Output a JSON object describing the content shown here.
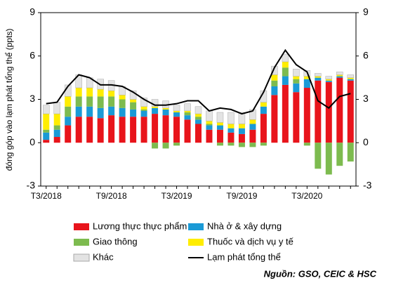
{
  "chart_data": {
    "type": "bar",
    "y_label": "đóng góp vào lạm phát tổng thể (ppts)",
    "source": "Nguồn: GSO, CEIC & HSC",
    "categories": [
      "T3/2018",
      null,
      null,
      null,
      null,
      null,
      "T9/2018",
      null,
      null,
      null,
      null,
      null,
      "T3/2019",
      null,
      null,
      null,
      null,
      null,
      "T9/2019",
      null,
      null,
      null,
      null,
      null,
      "T3/2020",
      null,
      null,
      null,
      null
    ],
    "ylim": [
      -3,
      9
    ],
    "yticks": [
      -3,
      0,
      3,
      6,
      9
    ],
    "y2lim": [
      -3,
      9
    ],
    "y2ticks": [
      -3,
      0,
      3,
      6,
      9
    ],
    "series": [
      {
        "name": "Lương thực thực phẩm",
        "color": "#e8141b",
        "values": [
          0.2,
          0.4,
          1.2,
          1.8,
          1.8,
          1.7,
          1.9,
          1.8,
          1.8,
          1.8,
          2.0,
          1.9,
          1.8,
          1.6,
          1.3,
          0.9,
          0.9,
          0.7,
          0.6,
          0.9,
          2.0,
          3.3,
          4.0,
          3.5,
          3.8,
          4.3,
          4.2,
          4.5,
          4.3
        ]
      },
      {
        "name": "Nhà ở & xây dựng",
        "color": "#1a9ad6",
        "values": [
          0.5,
          0.5,
          0.6,
          0.7,
          0.7,
          0.7,
          0.6,
          0.6,
          0.5,
          0.4,
          0.4,
          0.4,
          0.3,
          0.3,
          0.3,
          0.3,
          0.3,
          0.3,
          0.4,
          0.4,
          0.5,
          0.6,
          0.6,
          0.6,
          0.6,
          0.2,
          0.1,
          0.1,
          0.1
        ]
      },
      {
        "name": "Giao thông",
        "color": "#7dbb4f",
        "values": [
          0.2,
          0.3,
          0.7,
          0.7,
          0.7,
          0.8,
          0.7,
          0.6,
          0.5,
          0.1,
          -0.4,
          -0.4,
          -0.2,
          0.2,
          0.2,
          0.1,
          -0.2,
          -0.2,
          -0.3,
          -0.3,
          -0.2,
          0.4,
          0.6,
          0.3,
          -0.2,
          -1.8,
          -2.2,
          -1.6,
          -1.3
        ]
      },
      {
        "name": "Thuốc và dịch vụ y tế",
        "color": "#ffed00",
        "values": [
          1.1,
          0.8,
          0.7,
          0.6,
          0.6,
          0.5,
          0.4,
          0.3,
          0.2,
          0.2,
          0.1,
          0.1,
          0.1,
          0.1,
          0.2,
          0.2,
          0.2,
          0.3,
          0.3,
          0.3,
          0.3,
          0.4,
          0.4,
          0.2,
          0.2,
          0.1,
          0.1,
          0.1,
          0.1
        ]
      },
      {
        "name": "Khác",
        "color": "#e3e3e3",
        "values": [
          0.6,
          0.8,
          0.8,
          0.9,
          0.7,
          0.7,
          0.7,
          0.6,
          0.6,
          0.6,
          0.5,
          0.5,
          0.4,
          0.5,
          0.5,
          0.7,
          0.7,
          0.8,
          0.8,
          0.7,
          0.8,
          0.6,
          0.5,
          0.5,
          0.4,
          0.2,
          0.2,
          0.2,
          0.2
        ]
      },
      {
        "name": "Lạm phát tổng thể",
        "color": "#000000",
        "type": "line",
        "axis": "y2",
        "values": [
          2.7,
          2.8,
          3.9,
          4.7,
          4.5,
          4.0,
          4.0,
          3.9,
          3.5,
          3.0,
          2.6,
          2.6,
          2.7,
          2.9,
          2.9,
          2.2,
          2.4,
          2.3,
          2.0,
          2.2,
          3.5,
          5.2,
          6.4,
          5.4,
          4.9,
          2.9,
          2.4,
          3.2,
          3.4
        ]
      }
    ]
  }
}
